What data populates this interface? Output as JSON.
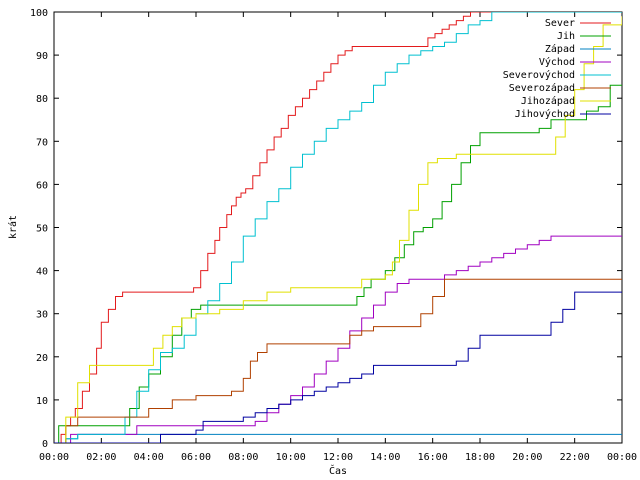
{
  "chart_data": {
    "type": "line",
    "title": "",
    "xlabel": "Čas",
    "ylabel": "krát",
    "xlim": [
      0,
      24
    ],
    "ylim": [
      0,
      100
    ],
    "x_ticks": [
      0,
      2,
      4,
      6,
      8,
      10,
      12,
      14,
      16,
      18,
      20,
      22,
      24
    ],
    "x_tick_labels": [
      "00:00",
      "02:00",
      "04:00",
      "06:00",
      "08:00",
      "10:00",
      "12:00",
      "14:00",
      "16:00",
      "18:00",
      "20:00",
      "22:00",
      "00:00"
    ],
    "y_ticks": [
      0,
      10,
      20,
      30,
      40,
      50,
      60,
      70,
      80,
      90,
      100
    ],
    "y_tick_labels": [
      "0",
      "10",
      "20",
      "30",
      "40",
      "50",
      "60",
      "70",
      "80",
      "90",
      "100"
    ],
    "grid": false,
    "legend_position": "top-right",
    "series": [
      {
        "name": "Sever",
        "color": "#e31a1c",
        "x": [
          0,
          0.3,
          0.5,
          0.7,
          0.9,
          1.2,
          1.5,
          1.8,
          2.0,
          2.3,
          2.6,
          2.9,
          3.1,
          5.9,
          6.2,
          6.5,
          6.8,
          7.0,
          7.3,
          7.5,
          7.7,
          7.9,
          8.1,
          8.4,
          8.7,
          9.0,
          9.3,
          9.6,
          9.9,
          10.2,
          10.5,
          10.8,
          11.1,
          11.4,
          11.7,
          12.0,
          12.3,
          12.6,
          12.9,
          13.2,
          15.8,
          16.1,
          16.4,
          16.7,
          17.0,
          17.3,
          17.6,
          17.9,
          24
        ],
        "y": [
          0,
          2,
          4,
          6,
          8,
          12,
          16,
          22,
          28,
          31,
          34,
          35,
          35,
          36,
          40,
          44,
          47,
          50,
          53,
          55,
          57,
          58,
          59,
          62,
          65,
          68,
          71,
          73,
          76,
          78,
          80,
          82,
          84,
          86,
          88,
          90,
          91,
          92,
          92,
          92,
          94,
          95,
          96,
          97,
          98,
          99,
          100,
          100,
          100
        ]
      },
      {
        "name": "Jih",
        "color": "#00a000",
        "x": [
          0,
          0.2,
          2.8,
          3.2,
          3.6,
          4.0,
          4.5,
          5.0,
          5.4,
          5.8,
          6.2,
          12.5,
          12.8,
          13.1,
          13.4,
          13.7,
          14.0,
          14.4,
          14.8,
          15.2,
          15.6,
          16.0,
          16.4,
          16.8,
          17.2,
          17.6,
          18.0,
          20.5,
          21.0,
          22.5,
          23.0,
          23.5,
          24
        ],
        "y": [
          0,
          4,
          4,
          8,
          13,
          16,
          20,
          25,
          29,
          31,
          32,
          32,
          34,
          36,
          38,
          38,
          40,
          43,
          46,
          49,
          50,
          52,
          56,
          60,
          65,
          69,
          72,
          73,
          75,
          77,
          78,
          83,
          83
        ]
      },
      {
        "name": "Západ",
        "color": "#0080c0",
        "x": [
          0,
          0.5,
          1.0,
          2.5,
          24
        ],
        "y": [
          0,
          1,
          2,
          2,
          2
        ]
      },
      {
        "name": "Východ",
        "color": "#a000c0",
        "x": [
          0,
          0.7,
          1.0,
          3.0,
          3.5,
          6.0,
          8.5,
          9.0,
          9.5,
          10.0,
          10.5,
          11.0,
          11.5,
          12.0,
          12.5,
          13.0,
          13.5,
          14.0,
          14.5,
          15.0,
          16.0,
          16.5,
          17.0,
          17.5,
          18.0,
          18.5,
          19.0,
          19.5,
          20.0,
          20.5,
          21.0,
          24
        ],
        "y": [
          0,
          2,
          2,
          2,
          4,
          4,
          5,
          7,
          9,
          11,
          13,
          16,
          19,
          22,
          26,
          29,
          32,
          35,
          37,
          38,
          38,
          39,
          40,
          41,
          42,
          43,
          44,
          45,
          46,
          47,
          48,
          48
        ]
      },
      {
        "name": "Severovýchod",
        "color": "#00c0d0",
        "x": [
          0,
          0.5,
          1.0,
          2.5,
          3.0,
          3.5,
          4.0,
          4.5,
          5.0,
          5.5,
          6.0,
          6.5,
          7.0,
          7.5,
          8.0,
          8.5,
          9.0,
          9.5,
          10.0,
          10.5,
          11.0,
          11.5,
          12.0,
          12.5,
          13.0,
          13.5,
          14.0,
          14.5,
          15.0,
          15.5,
          16.0,
          16.5,
          17.0,
          17.5,
          18.0,
          18.5,
          24
        ],
        "y": [
          0,
          1,
          2,
          2,
          6,
          12,
          17,
          21,
          22,
          25,
          30,
          33,
          37,
          42,
          48,
          52,
          56,
          59,
          64,
          67,
          70,
          73,
          75,
          77,
          79,
          83,
          86,
          88,
          90,
          91,
          92,
          93,
          95,
          97,
          98,
          100,
          100
        ]
      },
      {
        "name": "Severozápad",
        "color": "#b04000",
        "x": [
          0,
          0.5,
          1.0,
          3.5,
          4.0,
          5.0,
          6.0,
          7.5,
          8.0,
          8.3,
          8.6,
          9.0,
          12.0,
          12.5,
          13.0,
          13.5,
          15.0,
          15.5,
          16.0,
          16.5,
          24
        ],
        "y": [
          0,
          4,
          6,
          6,
          8,
          10,
          11,
          12,
          15,
          19,
          21,
          23,
          23,
          25,
          26,
          27,
          27,
          30,
          34,
          38,
          38
        ]
      },
      {
        "name": "Jihozápad",
        "color": "#e0e000",
        "x": [
          0,
          0.5,
          1.0,
          1.5,
          2.0,
          3.8,
          4.2,
          4.6,
          5.0,
          5.4,
          6.0,
          7.0,
          8.0,
          9.0,
          10.0,
          12.0,
          13.0,
          14.0,
          14.3,
          14.6,
          15.0,
          15.4,
          15.8,
          16.2,
          17.0,
          20.8,
          21.2,
          21.6,
          22.0,
          22.4,
          22.8,
          23.2,
          24
        ],
        "y": [
          0,
          6,
          14,
          18,
          18,
          18,
          22,
          25,
          27,
          29,
          30,
          31,
          33,
          35,
          36,
          36,
          38,
          39,
          42,
          47,
          54,
          60,
          65,
          66,
          67,
          67,
          71,
          76,
          82,
          88,
          92,
          97,
          99
        ]
      },
      {
        "name": "Jihovýchod",
        "color": "#0000a0",
        "x": [
          0,
          0.3,
          4.2,
          4.5,
          6.0,
          6.3,
          8.0,
          8.5,
          9.0,
          9.5,
          10.0,
          10.5,
          11.0,
          11.5,
          12.0,
          12.5,
          13.0,
          13.5,
          16.0,
          17.0,
          17.5,
          18.0,
          19.0,
          20.0,
          21.0,
          21.5,
          22.0,
          24
        ],
        "y": [
          0,
          0,
          0,
          2,
          3,
          5,
          6,
          7,
          8,
          9,
          10,
          11,
          12,
          13,
          14,
          15,
          16,
          18,
          18,
          19,
          22,
          25,
          25,
          25,
          28,
          31,
          35,
          35
        ]
      }
    ]
  }
}
